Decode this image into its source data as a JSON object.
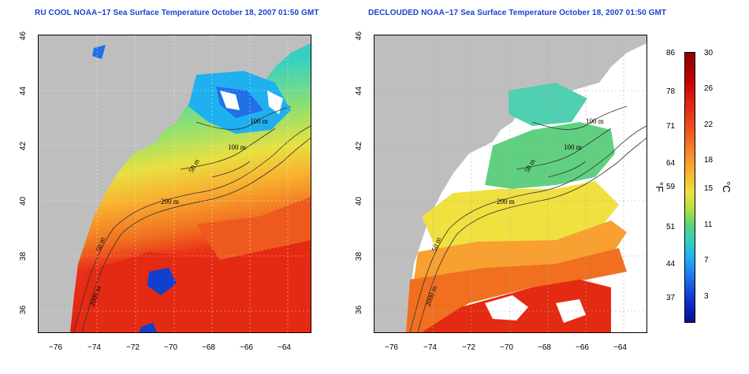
{
  "titles": {
    "left": "RU COOL NOAA−17 Sea Surface Temperature October 18, 2007 01:50 GMT",
    "right": "DECLOUDED NOAA−17 Sea Surface Temperature October 18, 2007 01:50 GMT"
  },
  "axes": {
    "x_ticks": [
      "−76",
      "−74",
      "−72",
      "−70",
      "−68",
      "−66",
      "−64"
    ],
    "y_ticks": [
      "46",
      "44",
      "42",
      "40",
      "38",
      "36"
    ]
  },
  "contours": {
    "left": [
      "100 m",
      "100 m",
      "50 m",
      "200 m",
      "50 m",
      "2000 m"
    ],
    "right": [
      "100 m",
      "100 m",
      "50 m",
      "200 m",
      "50 m",
      "2000 m"
    ]
  },
  "colorbar": {
    "fahrenheit": [
      "86",
      "78",
      "71",
      "64",
      "59",
      "51",
      "44",
      "37"
    ],
    "celsius": [
      "30",
      "26",
      "22",
      "18",
      "15",
      "11",
      "7",
      "3"
    ],
    "unit_f": "°F",
    "unit_c": "°C"
  }
}
